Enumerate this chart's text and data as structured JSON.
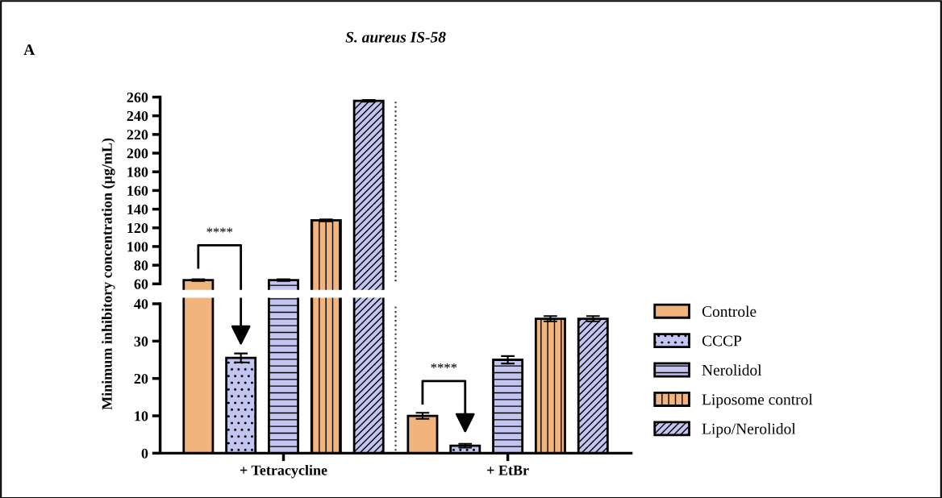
{
  "chart_data": [
    {
      "type": "bar",
      "title": "S. aureus IS-58",
      "ylabel": "Minimum inhibitory concentration (µg/mL)",
      "categories": [
        null,
        null
      ],
      "series": [
        {
          "color": "#f0b47c",
          "values": [
            64,
            null
          ],
          "errors": [
            1,
            null
          ]
        },
        {
          "values": [
            null,
            null
          ]
        },
        {
          "color": "#c4c4f0",
          "values": [
            64,
            null
          ],
          "errors": [
            1,
            null
          ]
        },
        {
          "color": "#f0b47c",
          "values": [
            128,
            null
          ],
          "errors": [
            1,
            null
          ]
        },
        {
          "color": "#c4c4f0",
          "values": [
            256,
            null
          ],
          "errors": [
            1,
            null
          ]
        }
      ],
      "ylim": [
        60,
        260
      ],
      "yticks": [
        60,
        80,
        100,
        120,
        140,
        160,
        180,
        200,
        220,
        240,
        260
      ],
      "tick_labels": "y",
      "annotations": [
        "A"
      ]
    },
    {
      "type": "bar",
      "categories": [
        "+ Tetracycline",
        "+ EtBr"
      ],
      "series": [
        {
          "name": "Controle",
          "color": "#f0b47c",
          "values": [
            null,
            10
          ],
          "errors": [
            null,
            0.8
          ]
        },
        {
          "name": "CCCP",
          "color": "#c4c4f0",
          "values": [
            25.5,
            2
          ],
          "errors": [
            1.2,
            0.5
          ]
        },
        {
          "name": "Nerolidol",
          "color": "#c4c4f0",
          "values": [
            null,
            25
          ],
          "errors": [
            null,
            1
          ]
        },
        {
          "name": "Liposome control",
          "color": "#f0b47c",
          "values": [
            null,
            36
          ],
          "errors": [
            null,
            0.7
          ]
        },
        {
          "name": "Lipo/Nerolidol",
          "color": "#c4c4f0",
          "values": [
            null,
            36
          ],
          "errors": [
            null,
            0.7
          ]
        }
      ],
      "ylim": [
        0,
        40
      ],
      "yticks": [
        0,
        10,
        20,
        30,
        40
      ],
      "annotations": [
        "****",
        "****"
      ],
      "legend": "right"
    }
  ]
}
